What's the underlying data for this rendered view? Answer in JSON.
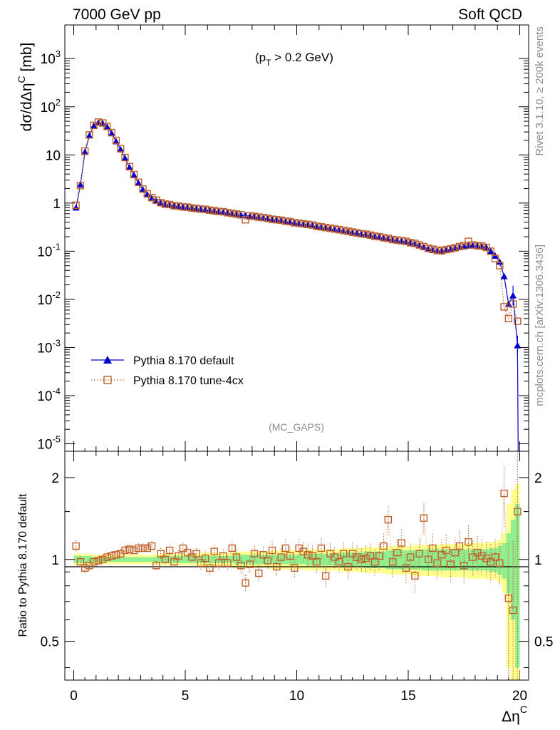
{
  "header": {
    "left": "7000 GeV pp",
    "right": "Soft QCD"
  },
  "cut_label": {
    "main": "(p",
    "sub": "T",
    "rest": " > 0.2 GeV)"
  },
  "analysis_label": "(MC_GAPS)",
  "side_labels": {
    "top": "Rivet 3.1.10, ≥ 200k events",
    "bottom": "mcplots.cern.ch [arXiv:1306.3436]"
  },
  "colors": {
    "default": "#0000cc",
    "tune": "#c0602a",
    "band_green": "#90f090",
    "band_yellow": "#ffff90"
  },
  "chart_data": [
    {
      "type": "line",
      "title": "",
      "xlabel": "Δη",
      "xlabel_sup": "C",
      "ylabel": "dσ/dΔη",
      "ylabel_sup": "C",
      "ylabel_unit": " [mb]",
      "yscale": "log",
      "xlim": [
        -0.4,
        20.4
      ],
      "ylim": [
        7e-06,
        5000
      ],
      "ytick_labels": [
        "10^-5",
        "10^-4",
        "10^-3",
        "10^-2",
        "10^-1",
        "1",
        "10",
        "10^2",
        "10^3"
      ],
      "xtick_labels": [
        "0",
        "5",
        "10",
        "15",
        "20"
      ],
      "legend_position": "lower-left",
      "x": [
        0.1,
        0.3,
        0.5,
        0.7,
        0.9,
        1.1,
        1.3,
        1.5,
        1.7,
        1.9,
        2.1,
        2.3,
        2.5,
        2.7,
        2.9,
        3.1,
        3.3,
        3.5,
        3.7,
        3.9,
        4.1,
        4.3,
        4.5,
        4.7,
        4.9,
        5.1,
        5.3,
        5.5,
        5.7,
        5.9,
        6.1,
        6.3,
        6.5,
        6.7,
        6.9,
        7.1,
        7.3,
        7.5,
        7.7,
        7.9,
        8.1,
        8.3,
        8.5,
        8.7,
        8.9,
        9.1,
        9.3,
        9.5,
        9.7,
        9.9,
        10.1,
        10.3,
        10.5,
        10.7,
        10.9,
        11.1,
        11.3,
        11.5,
        11.7,
        11.9,
        12.1,
        12.3,
        12.5,
        12.7,
        12.9,
        13.1,
        13.3,
        13.5,
        13.7,
        13.9,
        14.1,
        14.3,
        14.5,
        14.7,
        14.9,
        15.1,
        15.3,
        15.5,
        15.7,
        15.9,
        16.1,
        16.3,
        16.5,
        16.7,
        16.9,
        17.1,
        17.3,
        17.5,
        17.7,
        17.9,
        18.1,
        18.3,
        18.5,
        18.7,
        18.9,
        19.1,
        19.3,
        19.5,
        19.7,
        19.9
      ],
      "series": [
        {
          "name": "Pythia 8.170 default",
          "marker": "triangle",
          "values": [
            0.8,
            2.4,
            11.5,
            25,
            40,
            46,
            45,
            38,
            28,
            19,
            13,
            8.5,
            5.5,
            3.8,
            2.6,
            1.9,
            1.5,
            1.25,
            1.1,
            1.0,
            0.94,
            0.9,
            0.87,
            0.85,
            0.82,
            0.8,
            0.78,
            0.76,
            0.74,
            0.72,
            0.7,
            0.68,
            0.66,
            0.64,
            0.62,
            0.6,
            0.58,
            0.56,
            0.55,
            0.53,
            0.52,
            0.5,
            0.48,
            0.47,
            0.45,
            0.44,
            0.43,
            0.41,
            0.4,
            0.38,
            0.37,
            0.36,
            0.35,
            0.34,
            0.32,
            0.31,
            0.3,
            0.29,
            0.28,
            0.27,
            0.26,
            0.25,
            0.24,
            0.235,
            0.225,
            0.22,
            0.21,
            0.2,
            0.195,
            0.185,
            0.18,
            0.17,
            0.165,
            0.16,
            0.155,
            0.15,
            0.14,
            0.13,
            0.12,
            0.11,
            0.105,
            0.1,
            0.1,
            0.105,
            0.11,
            0.115,
            0.12,
            0.125,
            0.13,
            0.13,
            0.13,
            0.125,
            0.12,
            0.1,
            0.08,
            0.06,
            0.03,
            0.008,
            0.012,
            0.0011
          ]
        },
        {
          "name": "Pythia 8.170 tune-4cx",
          "marker": "open-square",
          "values": [
            0.9,
            2.3,
            12,
            26,
            41,
            48,
            46,
            39,
            29,
            20,
            13.5,
            8.8,
            5.7,
            3.9,
            2.7,
            1.95,
            1.55,
            1.3,
            1.15,
            1.02,
            0.95,
            0.93,
            0.88,
            0.86,
            0.83,
            0.82,
            0.79,
            0.77,
            0.75,
            0.74,
            0.71,
            0.69,
            0.67,
            0.66,
            0.63,
            0.61,
            0.59,
            0.57,
            0.45,
            0.54,
            0.53,
            0.51,
            0.5,
            0.48,
            0.46,
            0.45,
            0.44,
            0.42,
            0.41,
            0.39,
            0.38,
            0.37,
            0.36,
            0.35,
            0.33,
            0.32,
            0.31,
            0.3,
            0.29,
            0.28,
            0.27,
            0.26,
            0.25,
            0.24,
            0.23,
            0.225,
            0.215,
            0.205,
            0.2,
            0.19,
            0.185,
            0.175,
            0.17,
            0.165,
            0.16,
            0.15,
            0.145,
            0.135,
            0.125,
            0.115,
            0.11,
            0.105,
            0.102,
            0.108,
            0.112,
            0.118,
            0.125,
            0.13,
            0.16,
            0.135,
            0.13,
            0.128,
            0.12,
            0.1,
            0.07,
            0.05,
            0.007,
            0.004,
            0.008,
            0.0035
          ]
        }
      ]
    },
    {
      "type": "line",
      "title": "",
      "xlabel": "Δη",
      "xlabel_sup": "C",
      "ylabel": "Ratio to Pythia 8.170 default",
      "yscale": "log",
      "xlim": [
        -0.4,
        20.4
      ],
      "ylim": [
        0.36,
        2.5
      ],
      "ytick_labels": [
        "0.5",
        "1",
        "2"
      ],
      "xtick_labels": [
        "0",
        "5",
        "10",
        "15",
        "20"
      ],
      "x": [
        0.1,
        0.3,
        0.5,
        0.7,
        0.9,
        1.1,
        1.3,
        1.5,
        1.7,
        1.9,
        2.1,
        2.3,
        2.5,
        2.7,
        2.9,
        3.1,
        3.3,
        3.5,
        3.7,
        3.9,
        4.1,
        4.3,
        4.5,
        4.7,
        4.9,
        5.1,
        5.3,
        5.5,
        5.7,
        5.9,
        6.1,
        6.3,
        6.5,
        6.7,
        6.9,
        7.1,
        7.3,
        7.5,
        7.7,
        7.9,
        8.1,
        8.3,
        8.5,
        8.7,
        8.9,
        9.1,
        9.3,
        9.5,
        9.7,
        9.9,
        10.1,
        10.3,
        10.5,
        10.7,
        10.9,
        11.1,
        11.3,
        11.5,
        11.7,
        11.9,
        12.1,
        12.3,
        12.5,
        12.7,
        12.9,
        13.1,
        13.3,
        13.5,
        13.7,
        13.9,
        14.1,
        14.3,
        14.5,
        14.7,
        14.9,
        15.1,
        15.3,
        15.5,
        15.7,
        15.9,
        16.1,
        16.3,
        16.5,
        16.7,
        16.9,
        17.1,
        17.3,
        17.5,
        17.7,
        17.9,
        18.1,
        18.3,
        18.5,
        18.7,
        18.9,
        19.1,
        19.3,
        19.5,
        19.7,
        19.9
      ],
      "series": [
        {
          "name": "Pythia 8.170 tune-4cx",
          "marker": "open-square",
          "values": [
            1.12,
            0.98,
            0.93,
            0.95,
            0.98,
            0.99,
            1.0,
            1.02,
            1.03,
            1.04,
            1.05,
            1.08,
            1.09,
            1.08,
            1.1,
            1.1,
            1.1,
            1.12,
            0.95,
            1.05,
            1.0,
            1.08,
            0.98,
            1.03,
            1.1,
            1.06,
            1.02,
            1.05,
            0.97,
            1.01,
            0.93,
            1.07,
            0.97,
            1.03,
            0.97,
            1.1,
            1.02,
            0.95,
            0.82,
            0.96,
            1.05,
            0.89,
            1.04,
            0.99,
            1.08,
            0.94,
            1.02,
            1.1,
            1.03,
            0.93,
            1.1,
            1.07,
            1.04,
            1.03,
            0.98,
            1.1,
            0.87,
            1.05,
            1.02,
            0.98,
            1.05,
            0.94,
            1.05,
            1.02,
            1.0,
            1.01,
            1.03,
            0.98,
            1.03,
            1.12,
            1.4,
            0.98,
            1.06,
            1.15,
            0.93,
            1.02,
            0.87,
            1.05,
            1.42,
            1.0,
            1.1,
            0.97,
            1.04,
            1.08,
            0.96,
            1.06,
            1.12,
            0.95,
            1.16,
            1.02,
            1.06,
            1.03,
            1.01,
            0.98,
            1.02,
            0.97,
            1.75,
            0.72,
            0.65,
            1.5
          ]
        }
      ],
      "mc_band": {
        "inner_halfwidth_percent": [
          3,
          3,
          3,
          3,
          2,
          2,
          2,
          2,
          2,
          2,
          2,
          2,
          2,
          2,
          2,
          2,
          2,
          2,
          2,
          3,
          3,
          3,
          3,
          3,
          3,
          3,
          3,
          3,
          3,
          3,
          3,
          3,
          3,
          3,
          3,
          3,
          4,
          4,
          4,
          4,
          4,
          4,
          4,
          4,
          4,
          4,
          4,
          4,
          4,
          4,
          4,
          4,
          5,
          5,
          5,
          5,
          5,
          5,
          5,
          5,
          6,
          6,
          6,
          6,
          6,
          7,
          7,
          7,
          7,
          7,
          8,
          8,
          8,
          8,
          8,
          8,
          8,
          8,
          9,
          9,
          9,
          9,
          9,
          9,
          9,
          9,
          9,
          9,
          9,
          9,
          9,
          9,
          9,
          10,
          10,
          12,
          15,
          25,
          40,
          60
        ],
        "outer_halfwidth_percent": [
          5,
          5,
          5,
          5,
          4,
          4,
          4,
          4,
          4,
          4,
          4,
          4,
          4,
          4,
          4,
          4,
          4,
          4,
          4,
          5,
          5,
          5,
          5,
          5,
          5,
          5,
          5,
          5,
          6,
          6,
          6,
          6,
          6,
          6,
          6,
          6,
          7,
          7,
          7,
          7,
          7,
          7,
          7,
          7,
          8,
          8,
          8,
          8,
          8,
          8,
          8,
          8,
          9,
          9,
          9,
          9,
          9,
          9,
          9,
          9,
          10,
          10,
          10,
          10,
          10,
          11,
          11,
          11,
          11,
          11,
          12,
          12,
          12,
          12,
          12,
          12,
          13,
          13,
          13,
          13,
          13,
          13,
          14,
          14,
          14,
          14,
          14,
          14,
          15,
          15,
          15,
          15,
          15,
          16,
          16,
          18,
          25,
          60,
          80,
          90
        ]
      }
    }
  ]
}
